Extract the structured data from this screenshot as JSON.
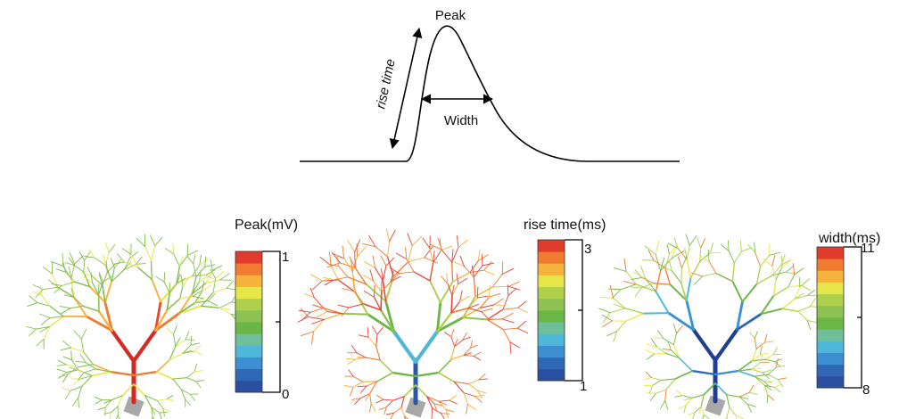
{
  "schematic": {
    "peak_label": "Peak",
    "rise_label": "rise time",
    "width_label": "Width"
  },
  "panels": [
    {
      "title": "Peak(mV)",
      "top_value": "1",
      "bottom_value": "0",
      "trunk_color": "#d42a26",
      "dominant_color": "#8dc152"
    },
    {
      "title": "rise time(ms)",
      "top_value": "3",
      "bottom_value": "1",
      "trunk_color": "#2b56a8",
      "dominant_color": "#e3453a"
    },
    {
      "title": "width(ms)",
      "top_value": "11",
      "bottom_value": "8",
      "trunk_color": "#1f3f93",
      "dominant_color": "#79b947"
    }
  ],
  "colorbar_colors": [
    "#2a4f9f",
    "#2e68b6",
    "#3b8fd2",
    "#4fb8d8",
    "#6ebf9a",
    "#6cb646",
    "#8dc152",
    "#afd04d",
    "#e6e649",
    "#f5b23d",
    "#f07c30",
    "#e03b2c"
  ]
}
